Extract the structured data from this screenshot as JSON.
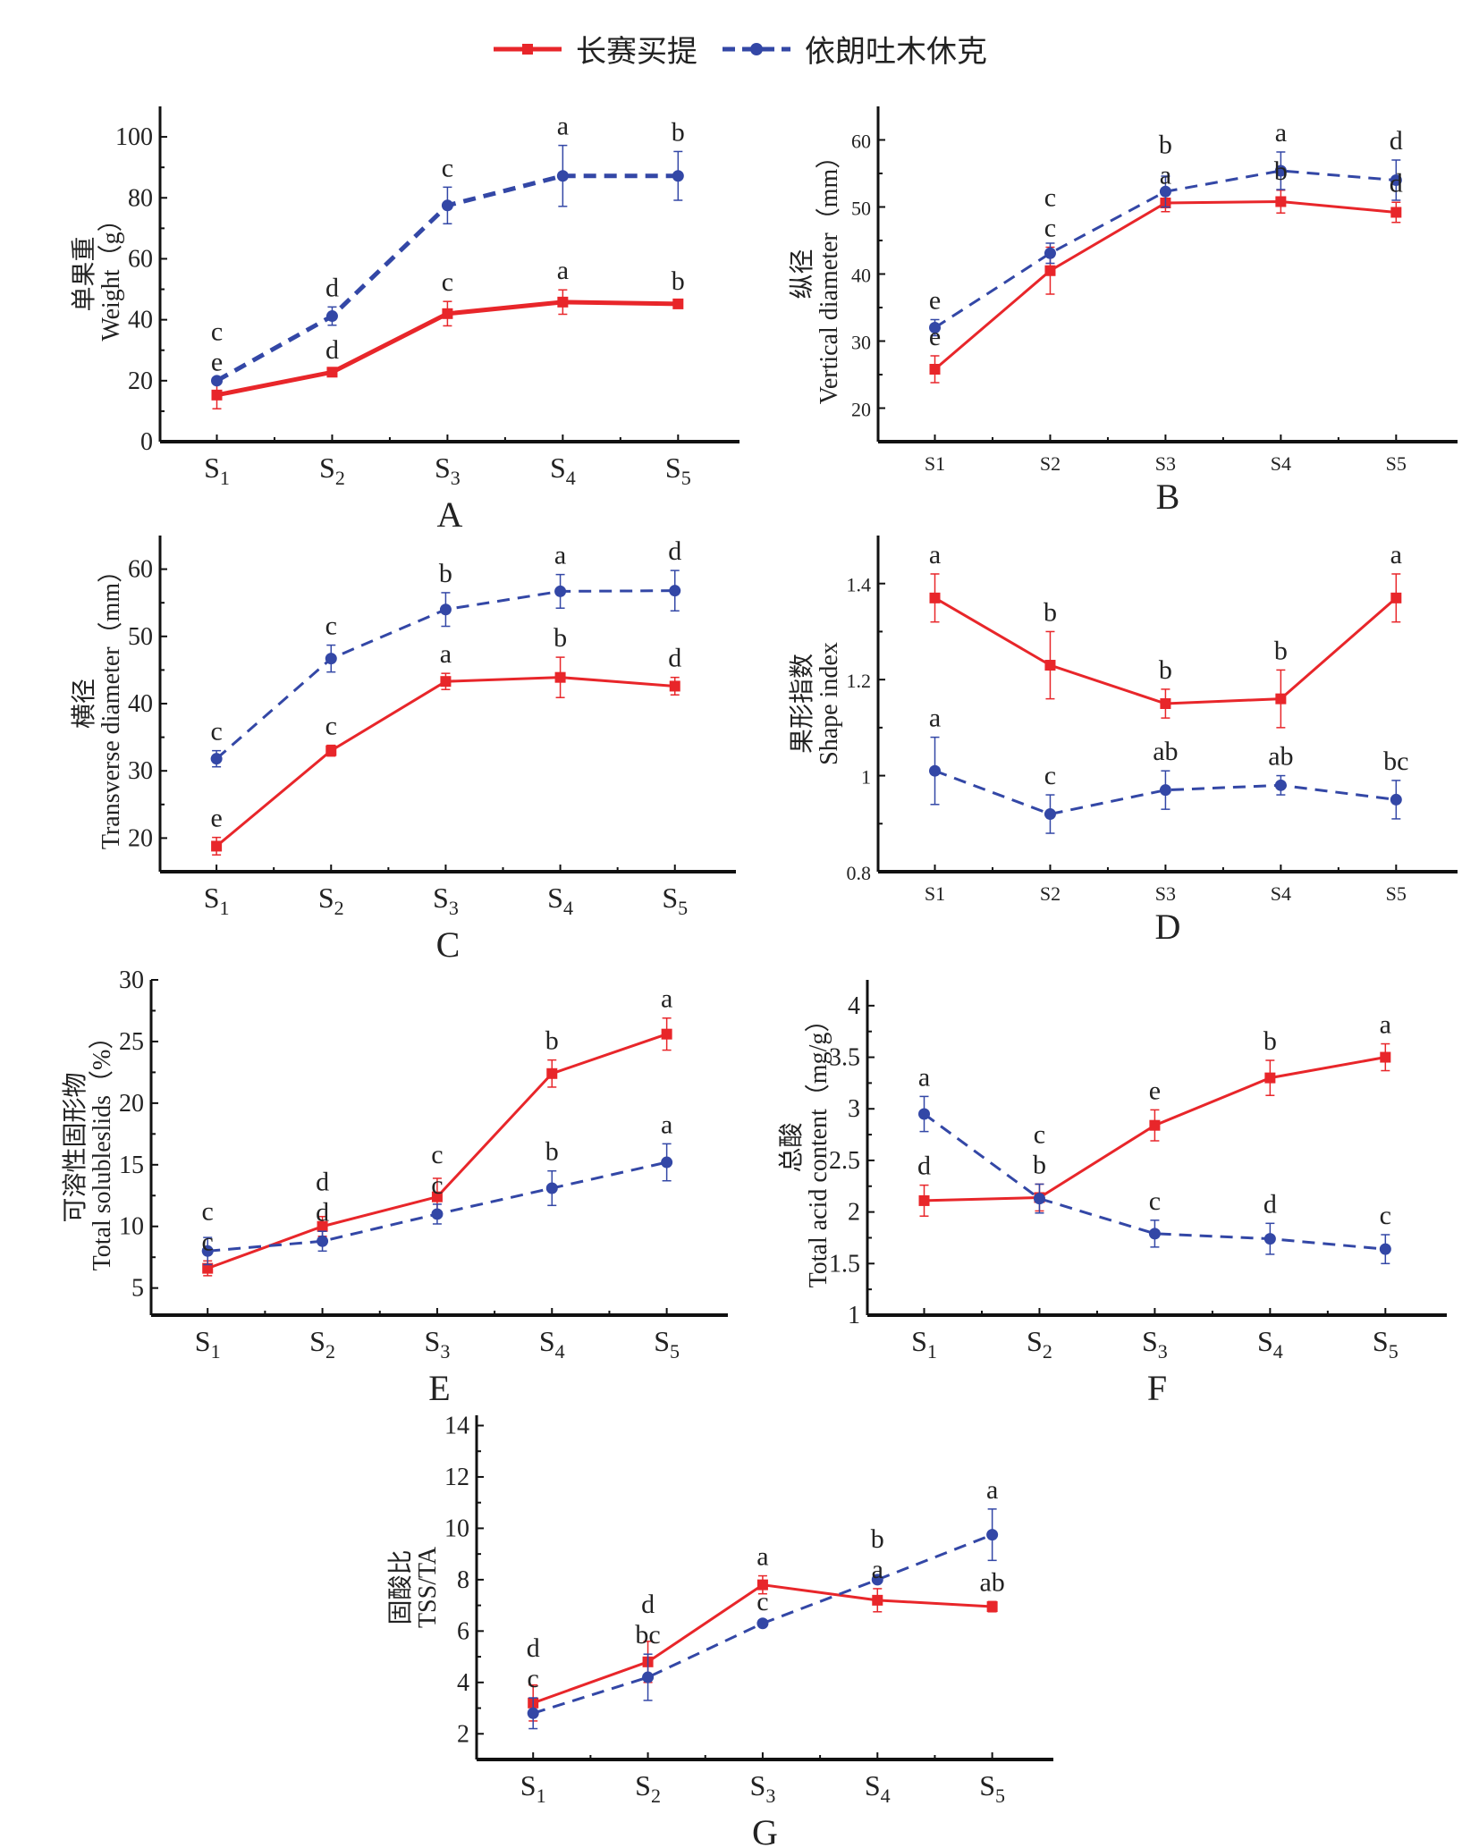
{
  "legend": [
    {
      "name": "长赛买提",
      "color": "#e8262a",
      "line": "solid",
      "marker": "square"
    },
    {
      "name": "依朗吐木休克",
      "color": "#3347a6",
      "line": "dashed",
      "marker": "circle"
    }
  ],
  "chart_data": [
    {
      "panel": "A",
      "type": "line",
      "categories": [
        "S1",
        "S2",
        "S3",
        "S4",
        "S5"
      ],
      "tick_style": "subscript",
      "ylabel_cn": "单果重",
      "ylabel": "Weight（g）",
      "ylim": [
        0,
        110
      ],
      "yticks": [
        0,
        20,
        40,
        60,
        80,
        100
      ],
      "series": [
        {
          "name": "长赛买提",
          "values": [
            15.3,
            22.8,
            42,
            45.8,
            45.2
          ],
          "errors": [
            4.5,
            1,
            4,
            4,
            1.2
          ],
          "letters": [
            "e",
            "d",
            "c",
            "a",
            "b"
          ]
        },
        {
          "name": "依朗吐木休克",
          "values": [
            20,
            41.2,
            77.5,
            87.2,
            87.2
          ],
          "errors": [
            1,
            3,
            6,
            10,
            8
          ],
          "letters": [
            "c",
            "d",
            "c",
            "a",
            "b"
          ]
        }
      ]
    },
    {
      "panel": "B",
      "type": "line",
      "categories": [
        "S1",
        "S2",
        "S3",
        "S4",
        "S5"
      ],
      "tick_style": "plain",
      "ylabel_cn": "纵径",
      "ylabel": "Vertical diameter（mm）",
      "ylim": [
        15,
        65
      ],
      "yticks": [
        20,
        30,
        40,
        50,
        60
      ],
      "series": [
        {
          "name": "长赛买提",
          "values": [
            25.8,
            40.5,
            50.6,
            50.8,
            49.2
          ],
          "errors": [
            2,
            3.5,
            1.3,
            1.7,
            1.5
          ],
          "letters": [
            "e",
            "c",
            "a",
            "b",
            "d"
          ]
        },
        {
          "name": "依朗吐木休克",
          "values": [
            32,
            43.1,
            52.3,
            55.4,
            54
          ],
          "errors": [
            1.2,
            1.5,
            2.3,
            2.8,
            3
          ],
          "letters": [
            "e",
            "c",
            "b",
            "a",
            "d"
          ]
        }
      ]
    },
    {
      "panel": "C",
      "type": "line",
      "categories": [
        "S1",
        "S2",
        "S3",
        "S4",
        "S5"
      ],
      "tick_style": "subscript",
      "ylabel_cn": "横径",
      "ylabel": "Transverse diameter（mm）",
      "ylim": [
        15,
        65
      ],
      "yticks": [
        20,
        30,
        40,
        50,
        60
      ],
      "series": [
        {
          "name": "长赛买提",
          "values": [
            18.8,
            33,
            43.3,
            43.9,
            42.6
          ],
          "errors": [
            1.3,
            0.8,
            1.2,
            3,
            1.3
          ],
          "letters": [
            "e",
            "c",
            "a",
            "b",
            "d"
          ]
        },
        {
          "name": "依朗吐木休克",
          "values": [
            31.8,
            46.7,
            54,
            56.7,
            56.8
          ],
          "errors": [
            1.2,
            2,
            2.5,
            2.5,
            3
          ],
          "letters": [
            "c",
            "c",
            "b",
            "a",
            "d"
          ]
        }
      ]
    },
    {
      "panel": "D",
      "type": "line",
      "categories": [
        "S1",
        "S2",
        "S3",
        "S4",
        "S5"
      ],
      "tick_style": "plain",
      "ylabel_cn": "果形指数",
      "ylabel": "Shape index",
      "ylim": [
        0.8,
        1.5
      ],
      "yticks": [
        0.8,
        1.0,
        1.2,
        1.4
      ],
      "series": [
        {
          "name": "长赛买提",
          "values": [
            1.37,
            1.23,
            1.15,
            1.16,
            1.37
          ],
          "errors": [
            0.05,
            0.07,
            0.03,
            0.06,
            0.05
          ],
          "letters": [
            "a",
            "b",
            "b",
            "b",
            "a"
          ]
        },
        {
          "name": "依朗吐木休克",
          "values": [
            1.01,
            0.92,
            0.97,
            0.98,
            0.95
          ],
          "errors": [
            0.07,
            0.04,
            0.04,
            0.02,
            0.04
          ],
          "letters": [
            "a",
            "c",
            "ab",
            "ab",
            "bc"
          ]
        }
      ]
    },
    {
      "panel": "E",
      "type": "line",
      "categories": [
        "S1",
        "S2",
        "S3",
        "S4",
        "S5"
      ],
      "tick_style": "subscript",
      "ylabel_cn": "可溶性固形物",
      "ylabel": "Total solubleslids（%）",
      "ylim": [
        2.8,
        30
      ],
      "yticks": [
        5,
        10,
        15,
        20,
        25,
        30
      ],
      "series": [
        {
          "name": "长赛买提",
          "values": [
            6.6,
            10,
            12.4,
            22.4,
            25.6
          ],
          "errors": [
            0.6,
            0.8,
            1.5,
            1.1,
            1.3
          ],
          "letters": [
            "c",
            "d",
            "c",
            "b",
            "a"
          ]
        },
        {
          "name": "依朗吐木休克",
          "values": [
            8,
            8.8,
            11,
            13.1,
            15.2
          ],
          "errors": [
            1.1,
            0.8,
            0.8,
            1.4,
            1.5
          ],
          "letters": [
            "c",
            "d",
            "c",
            "b",
            "a"
          ]
        }
      ]
    },
    {
      "panel": "F",
      "type": "line",
      "categories": [
        "S1",
        "S2",
        "S3",
        "S4",
        "S5"
      ],
      "tick_style": "subscript",
      "ylabel_cn": "总酸",
      "ylabel": "Total acid content（mg/g）",
      "ylim": [
        1.0,
        4.25
      ],
      "yticks": [
        1.0,
        1.5,
        2.0,
        2.5,
        3.0,
        3.5,
        4.0
      ],
      "series": [
        {
          "name": "长赛买提",
          "values": [
            2.11,
            2.14,
            2.84,
            3.3,
            3.5
          ],
          "errors": [
            0.15,
            0.13,
            0.15,
            0.17,
            0.13
          ],
          "letters": [
            "d",
            "b",
            "e",
            "b",
            "a"
          ]
        },
        {
          "name": "依朗吐木休克",
          "values": [
            2.95,
            2.13,
            1.79,
            1.74,
            1.64
          ],
          "errors": [
            0.17,
            0.14,
            0.13,
            0.15,
            0.14
          ],
          "letters": [
            "a",
            "c",
            "c",
            "d",
            "c"
          ]
        }
      ]
    },
    {
      "panel": "G",
      "type": "line",
      "categories": [
        "S1",
        "S2",
        "S3",
        "S4",
        "S5"
      ],
      "tick_style": "subscript",
      "ylabel_cn": "固酸比",
      "ylabel": "TSS/TA",
      "ylim": [
        1,
        14.4
      ],
      "yticks": [
        2,
        4,
        6,
        8,
        10,
        12,
        14
      ],
      "series": [
        {
          "name": "长赛买提",
          "values": [
            3.2,
            4.8,
            7.8,
            7.2,
            6.95
          ],
          "errors": [
            0.7,
            0.8,
            0.35,
            0.45,
            0.2
          ],
          "letters": [
            "d",
            "d",
            "a",
            "a",
            "ab"
          ]
        },
        {
          "name": "依朗吐木休克",
          "values": [
            2.8,
            4.2,
            6.3,
            8.0,
            9.75
          ],
          "errors": [
            0.6,
            0.9,
            0.1,
            0.1,
            1.0
          ],
          "letters": [
            "c",
            "bc",
            "c",
            "b",
            "a"
          ]
        }
      ]
    }
  ]
}
